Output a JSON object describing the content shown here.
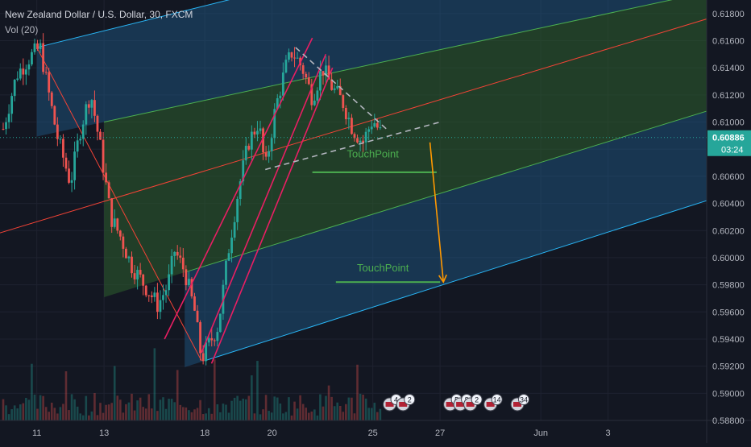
{
  "header": {
    "title": "New Zealand Dollar / U.S. Dollar, 30, FXCM",
    "volume_label": "Vol (20)"
  },
  "chart_data": {
    "type": "candlestick",
    "symbol": "NZDUSD",
    "interval": "30",
    "source": "FXCM",
    "ylim": [
      0.588,
      0.619
    ],
    "y_ticks": [
      0.618,
      0.616,
      0.614,
      0.612,
      0.61,
      0.608,
      0.606,
      0.604,
      0.602,
      0.6,
      0.598,
      0.596,
      0.594,
      0.592,
      0.59,
      0.588
    ],
    "x_ticks": [
      {
        "label": "11",
        "t": 1.0
      },
      {
        "label": "13",
        "t": 3.0
      },
      {
        "label": "18",
        "t": 6.0
      },
      {
        "label": "20",
        "t": 8.0
      },
      {
        "label": "25",
        "t": 11.0
      },
      {
        "label": "27",
        "t": 13.0
      },
      {
        "label": "Jun",
        "t": 16.0
      },
      {
        "label": "3",
        "t": 18.0
      }
    ],
    "current_price": {
      "value": "0.60886",
      "price": 0.60886,
      "countdown": "03:24",
      "hidden_tick": "0.60"
    },
    "price_path": [
      [
        0.0,
        0.6095
      ],
      [
        0.4,
        0.6135
      ],
      [
        0.8,
        0.6148
      ],
      [
        1.1,
        0.6155
      ],
      [
        1.3,
        0.6128
      ],
      [
        1.6,
        0.609
      ],
      [
        2.0,
        0.6055
      ],
      [
        2.3,
        0.6095
      ],
      [
        2.6,
        0.6122
      ],
      [
        2.9,
        0.608
      ],
      [
        3.2,
        0.603
      ],
      [
        3.5,
        0.6015
      ],
      [
        3.8,
        0.5995
      ],
      [
        4.2,
        0.598
      ],
      [
        4.6,
        0.5965
      ],
      [
        4.9,
        0.598
      ],
      [
        5.1,
        0.6005
      ],
      [
        5.4,
        0.599
      ],
      [
        5.7,
        0.596
      ],
      [
        5.9,
        0.5925
      ],
      [
        6.1,
        0.5935
      ],
      [
        6.4,
        0.595
      ],
      [
        6.7,
        0.6005
      ],
      [
        7.0,
        0.605
      ],
      [
        7.3,
        0.6085
      ],
      [
        7.6,
        0.61
      ],
      [
        7.8,
        0.6065
      ],
      [
        8.1,
        0.611
      ],
      [
        8.4,
        0.614
      ],
      [
        8.6,
        0.6152
      ],
      [
        8.9,
        0.614
      ],
      [
        9.2,
        0.6118
      ],
      [
        9.5,
        0.614
      ],
      [
        9.8,
        0.6125
      ],
      [
        10.1,
        0.6115
      ],
      [
        10.4,
        0.6095
      ],
      [
        10.7,
        0.6085
      ],
      [
        11.0,
        0.6102
      ],
      [
        11.3,
        0.60886
      ]
    ],
    "pitchfork": {
      "median_line": [
        [
          0.0,
          0.6019
        ],
        [
          20.8,
          0.6175
        ]
      ],
      "upper_outer": [
        [
          1.0,
          0.6155
        ],
        [
          14.5,
          0.6238
        ]
      ],
      "upper_inner": [
        [
          3.0,
          0.61
        ],
        [
          20.8,
          0.6195
        ]
      ],
      "lower_inner": [
        [
          5.5,
          0.599
        ],
        [
          20.8,
          0.6107
        ]
      ],
      "lower_outer": [
        [
          6.0,
          0.5924
        ],
        [
          20.8,
          0.6041
        ]
      ],
      "pivot_a": [
        1.0,
        0.6155
      ],
      "pivot_b": [
        5.9,
        0.5924
      ]
    },
    "rising_channel": [
      [
        [
          4.8,
          0.594
        ],
        [
          9.2,
          0.6162
        ]
      ],
      [
        [
          5.9,
          0.593
        ],
        [
          9.6,
          0.615
        ]
      ],
      [
        [
          6.2,
          0.5922
        ],
        [
          9.8,
          0.614
        ]
      ]
    ],
    "triangle": {
      "upper": [
        [
          8.7,
          0.6155
        ],
        [
          11.4,
          0.6095
        ]
      ],
      "lower": [
        [
          7.8,
          0.6065
        ],
        [
          13.0,
          0.61
        ]
      ]
    },
    "annotations": [
      {
        "text": "TouchPoint",
        "x": 11.0,
        "y": 0.6074,
        "line": [
          [
            9.2,
            0.6063
          ],
          [
            12.9,
            0.6063
          ]
        ]
      },
      {
        "text": "TouchPoint",
        "x": 11.3,
        "y": 0.599,
        "line": [
          [
            9.9,
            0.5982
          ],
          [
            13.0,
            0.5982
          ]
        ]
      }
    ],
    "forecast_arrow": [
      [
        12.7,
        0.6085
      ],
      [
        13.1,
        0.5982
      ]
    ],
    "volume_range": [
      0,
      1
    ],
    "event_badges": [
      {
        "label": "4",
        "t": 11.5
      },
      {
        "label": "2",
        "t": 11.9
      },
      {
        "label": "5",
        "t": 13.3
      },
      {
        "label": "8",
        "t": 13.6
      },
      {
        "label": "2",
        "t": 13.9
      },
      {
        "label": "14",
        "t": 14.5
      },
      {
        "label": "34",
        "t": 15.3
      }
    ],
    "colors": {
      "background": "#131722",
      "up": "#26a69a",
      "down": "#ef5350",
      "median": "#f44336",
      "upper_outer": "#29b6f6",
      "inner": "#4caf50",
      "channel": "#e91e63",
      "triangle": "#b2b5be",
      "arrow": "#ff9800",
      "annotation": "#4caf50",
      "price_label": "#26a69a"
    }
  }
}
